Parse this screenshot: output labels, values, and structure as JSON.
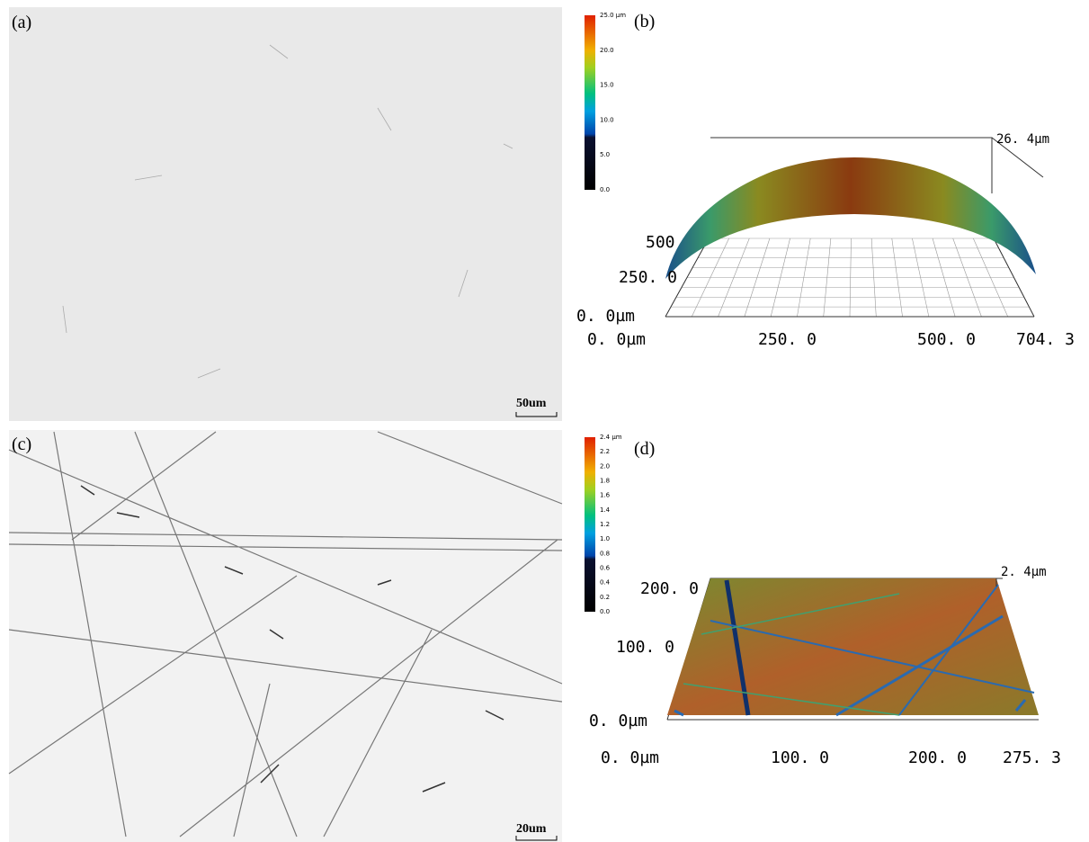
{
  "panels": [
    {
      "label": "(a)",
      "scale_bar": "50um"
    },
    {
      "label": "(b)",
      "colorbar_ticks": [
        "25.0 µm",
        "20.0",
        "15.0",
        "10.0",
        "5.0",
        "0.0"
      ],
      "z_max": "26. 4µm",
      "y_ticks": [
        "500",
        "250. 0",
        "0. 0µm"
      ],
      "x_ticks": [
        "0. 0µm",
        "250. 0",
        "500. 0",
        "704. 3"
      ]
    },
    {
      "label": "(c)",
      "scale_bar": "20um"
    },
    {
      "label": "(d)",
      "colorbar_ticks": [
        "2.4 µm",
        "2.2",
        "2.0",
        "1.8",
        "1.6",
        "1.4",
        "1.2",
        "1.0",
        "0.8",
        "0.6",
        "0.4",
        "0.2",
        "0.0"
      ],
      "z_max": "2. 4µm",
      "y_ticks": [
        "200. 0",
        "100. 0",
        "0. 0µm"
      ],
      "x_ticks": [
        "0. 0µm",
        "100. 0",
        "200. 0",
        "275. 3"
      ]
    }
  ]
}
